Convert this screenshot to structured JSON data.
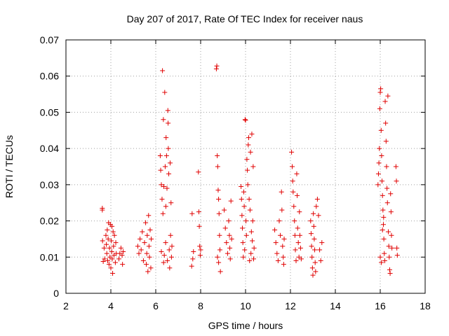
{
  "chart_data": {
    "type": "scatter",
    "title": "Day 207 of 2017, Rate Of TEC Index for receiver naus",
    "xlabel": "GPS time / hours",
    "ylabel": "ROTI / TECUs",
    "xlim": [
      2,
      18
    ],
    "ylim": [
      0,
      0.07
    ],
    "xticks": [
      2,
      4,
      6,
      8,
      10,
      12,
      14,
      16,
      18
    ],
    "xtick_labels": [
      "2",
      "4",
      "6",
      "8",
      "10",
      "12",
      "14",
      "16",
      "18"
    ],
    "yticks": [
      0,
      0.01,
      0.02,
      0.03,
      0.04,
      0.05,
      0.06,
      0.07
    ],
    "ytick_labels": [
      "0",
      "0.01",
      "0.02",
      "0.03",
      "0.04",
      "0.05",
      "0.06",
      "0.07"
    ],
    "grid": true,
    "marker": "+",
    "color": "#e00000",
    "series": [
      {
        "name": "naus",
        "points": [
          [
            3.62,
            0.0235
          ],
          [
            3.62,
            0.023
          ],
          [
            3.63,
            0.0145
          ],
          [
            3.66,
            0.0088
          ],
          [
            3.7,
            0.0125
          ],
          [
            3.72,
            0.0095
          ],
          [
            3.78,
            0.016
          ],
          [
            3.8,
            0.0135
          ],
          [
            3.82,
            0.011
          ],
          [
            3.84,
            0.0175
          ],
          [
            3.86,
            0.009
          ],
          [
            3.88,
            0.015
          ],
          [
            3.9,
            0.0195
          ],
          [
            3.92,
            0.008
          ],
          [
            3.94,
            0.0125
          ],
          [
            3.96,
            0.01
          ],
          [
            3.98,
            0.019
          ],
          [
            4.0,
            0.007
          ],
          [
            4.02,
            0.0145
          ],
          [
            4.04,
            0.0115
          ],
          [
            4.05,
            0.0185
          ],
          [
            4.06,
            0.0095
          ],
          [
            4.08,
            0.0055
          ],
          [
            4.1,
            0.017
          ],
          [
            4.12,
            0.013
          ],
          [
            4.14,
            0.0105
          ],
          [
            4.16,
            0.016
          ],
          [
            4.2,
            0.0085
          ],
          [
            4.22,
            0.014
          ],
          [
            4.24,
            0.011
          ],
          [
            4.36,
            0.0095
          ],
          [
            4.4,
            0.011
          ],
          [
            4.45,
            0.0125
          ],
          [
            4.5,
            0.0105
          ],
          [
            4.52,
            0.008
          ],
          [
            4.55,
            0.0115
          ],
          [
            5.2,
            0.013
          ],
          [
            5.25,
            0.011
          ],
          [
            5.3,
            0.015
          ],
          [
            5.35,
            0.012
          ],
          [
            5.4,
            0.017
          ],
          [
            5.45,
            0.009
          ],
          [
            5.5,
            0.014
          ],
          [
            5.55,
            0.0195
          ],
          [
            5.58,
            0.008
          ],
          [
            5.6,
            0.011
          ],
          [
            5.62,
            0.016
          ],
          [
            5.65,
            0.006
          ],
          [
            5.68,
            0.0215
          ],
          [
            5.7,
            0.013
          ],
          [
            5.72,
            0.01
          ],
          [
            5.75,
            0.0175
          ],
          [
            5.78,
            0.007
          ],
          [
            5.8,
            0.015
          ],
          [
            6.2,
            0.038
          ],
          [
            6.22,
            0.034
          ],
          [
            6.25,
            0.03
          ],
          [
            6.28,
            0.026
          ],
          [
            6.3,
            0.0615
          ],
          [
            6.32,
            0.022
          ],
          [
            6.34,
            0.048
          ],
          [
            6.36,
            0.0295
          ],
          [
            6.38,
            0.0105
          ],
          [
            6.4,
            0.0555
          ],
          [
            6.42,
            0.035
          ],
          [
            6.44,
            0.014
          ],
          [
            6.46,
            0.043
          ],
          [
            6.48,
            0.038
          ],
          [
            6.5,
            0.029
          ],
          [
            6.52,
            0.009
          ],
          [
            6.54,
            0.0505
          ],
          [
            6.56,
            0.04
          ],
          [
            6.58,
            0.033
          ],
          [
            6.6,
            0.012
          ],
          [
            6.62,
            0.007
          ],
          [
            6.64,
            0.036
          ],
          [
            6.66,
            0.016
          ],
          [
            6.68,
            0.025
          ],
          [
            6.7,
            0.01
          ],
          [
            6.72,
            0.013
          ],
          [
            6.25,
            0.0115
          ],
          [
            6.35,
            0.0085
          ],
          [
            6.45,
            0.024
          ],
          [
            6.55,
            0.047
          ],
          [
            7.6,
            0.0075
          ],
          [
            7.62,
            0.022
          ],
          [
            7.65,
            0.0095
          ],
          [
            7.68,
            0.0115
          ],
          [
            7.9,
            0.0335
          ],
          [
            7.92,
            0.0225
          ],
          [
            7.94,
            0.0185
          ],
          [
            7.96,
            0.013
          ],
          [
            7.98,
            0.0105
          ],
          [
            8.0,
            0.012
          ],
          [
            8.7,
            0.062
          ],
          [
            8.72,
            0.0628
          ],
          [
            8.74,
            0.038
          ],
          [
            8.76,
            0.035
          ],
          [
            8.78,
            0.0285
          ],
          [
            8.8,
            0.026
          ],
          [
            8.82,
            0.022
          ],
          [
            8.84,
            0.016
          ],
          [
            8.86,
            0.012
          ],
          [
            8.88,
            0.006
          ],
          [
            8.75,
            0.01
          ],
          [
            8.8,
            0.0085
          ],
          [
            9.05,
            0.023
          ],
          [
            9.1,
            0.018
          ],
          [
            9.15,
            0.014
          ],
          [
            9.2,
            0.011
          ],
          [
            9.25,
            0.02
          ],
          [
            9.28,
            0.016
          ],
          [
            9.3,
            0.0125
          ],
          [
            9.32,
            0.0095
          ],
          [
            9.35,
            0.0255
          ],
          [
            9.38,
            0.015
          ],
          [
            9.8,
            0.0295
          ],
          [
            9.82,
            0.026
          ],
          [
            9.84,
            0.0215
          ],
          [
            9.86,
            0.018
          ],
          [
            9.88,
            0.014
          ],
          [
            9.9,
            0.01
          ],
          [
            9.92,
            0.028
          ],
          [
            9.94,
            0.024
          ],
          [
            9.96,
            0.012
          ],
          [
            9.98,
            0.048
          ],
          [
            10.0,
            0.0478
          ],
          [
            10.02,
            0.02
          ],
          [
            10.04,
            0.016
          ],
          [
            10.06,
            0.037
          ],
          [
            10.08,
            0.034
          ],
          [
            10.1,
            0.03
          ],
          [
            10.12,
            0.041
          ],
          [
            10.14,
            0.043
          ],
          [
            10.16,
            0.026
          ],
          [
            10.18,
            0.009
          ],
          [
            10.2,
            0.023
          ],
          [
            10.22,
            0.039
          ],
          [
            10.24,
            0.011
          ],
          [
            10.26,
            0.017
          ],
          [
            10.28,
            0.044
          ],
          [
            10.3,
            0.0145
          ],
          [
            10.32,
            0.02
          ],
          [
            10.34,
            0.035
          ],
          [
            10.36,
            0.0095
          ],
          [
            10.38,
            0.0125
          ],
          [
            11.3,
            0.0175
          ],
          [
            11.35,
            0.014
          ],
          [
            11.4,
            0.011
          ],
          [
            11.45,
            0.009
          ],
          [
            11.5,
            0.02
          ],
          [
            11.55,
            0.016
          ],
          [
            11.6,
            0.028
          ],
          [
            11.62,
            0.023
          ],
          [
            11.65,
            0.013
          ],
          [
            11.68,
            0.01
          ],
          [
            11.7,
            0.008
          ],
          [
            11.72,
            0.015
          ],
          [
            12.05,
            0.039
          ],
          [
            12.08,
            0.035
          ],
          [
            12.1,
            0.031
          ],
          [
            12.12,
            0.028
          ],
          [
            12.15,
            0.024
          ],
          [
            12.18,
            0.02
          ],
          [
            12.2,
            0.016
          ],
          [
            12.22,
            0.012
          ],
          [
            12.25,
            0.009
          ],
          [
            12.28,
            0.033
          ],
          [
            12.3,
            0.027
          ],
          [
            12.32,
            0.018
          ],
          [
            12.35,
            0.014
          ],
          [
            12.38,
            0.01
          ],
          [
            12.4,
            0.0225
          ],
          [
            12.42,
            0.016
          ],
          [
            12.45,
            0.0125
          ],
          [
            12.48,
            0.0095
          ],
          [
            12.9,
            0.02
          ],
          [
            12.92,
            0.0165
          ],
          [
            12.94,
            0.013
          ],
          [
            12.96,
            0.01
          ],
          [
            12.98,
            0.007
          ],
          [
            13.0,
            0.005
          ],
          [
            13.02,
            0.022
          ],
          [
            13.04,
            0.0185
          ],
          [
            13.06,
            0.015
          ],
          [
            13.08,
            0.012
          ],
          [
            13.1,
            0.0085
          ],
          [
            13.12,
            0.006
          ],
          [
            13.15,
            0.024
          ],
          [
            13.2,
            0.026
          ],
          [
            13.25,
            0.0215
          ],
          [
            13.3,
            0.012
          ],
          [
            13.35,
            0.009
          ],
          [
            13.4,
            0.014
          ],
          [
            15.9,
            0.03
          ],
          [
            15.92,
            0.033
          ],
          [
            15.94,
            0.036
          ],
          [
            15.96,
            0.04
          ],
          [
            15.98,
            0.051
          ],
          [
            16.0,
            0.0555
          ],
          [
            16.02,
            0.0565
          ],
          [
            16.04,
            0.045
          ],
          [
            16.06,
            0.038
          ],
          [
            16.08,
            0.031
          ],
          [
            16.1,
            0.027
          ],
          [
            16.12,
            0.023
          ],
          [
            16.14,
            0.019
          ],
          [
            16.16,
            0.015
          ],
          [
            16.18,
            0.011
          ],
          [
            16.2,
            0.009
          ],
          [
            16.22,
            0.053
          ],
          [
            16.24,
            0.047
          ],
          [
            16.26,
            0.042
          ],
          [
            16.28,
            0.035
          ],
          [
            16.3,
            0.029
          ],
          [
            16.32,
            0.025
          ],
          [
            16.34,
            0.0545
          ],
          [
            16.36,
            0.017
          ],
          [
            16.38,
            0.013
          ],
          [
            16.4,
            0.01
          ],
          [
            16.42,
            0.0065
          ],
          [
            16.44,
            0.0055
          ],
          [
            16.46,
            0.0275
          ],
          [
            16.48,
            0.0225
          ],
          [
            16.5,
            0.016
          ],
          [
            16.52,
            0.0125
          ],
          [
            16.0,
            0.01
          ],
          [
            16.05,
            0.0085
          ],
          [
            16.1,
            0.0175
          ],
          [
            16.15,
            0.021
          ],
          [
            16.7,
            0.035
          ],
          [
            16.72,
            0.031
          ],
          [
            16.74,
            0.0125
          ],
          [
            16.76,
            0.0105
          ]
        ]
      }
    ]
  }
}
